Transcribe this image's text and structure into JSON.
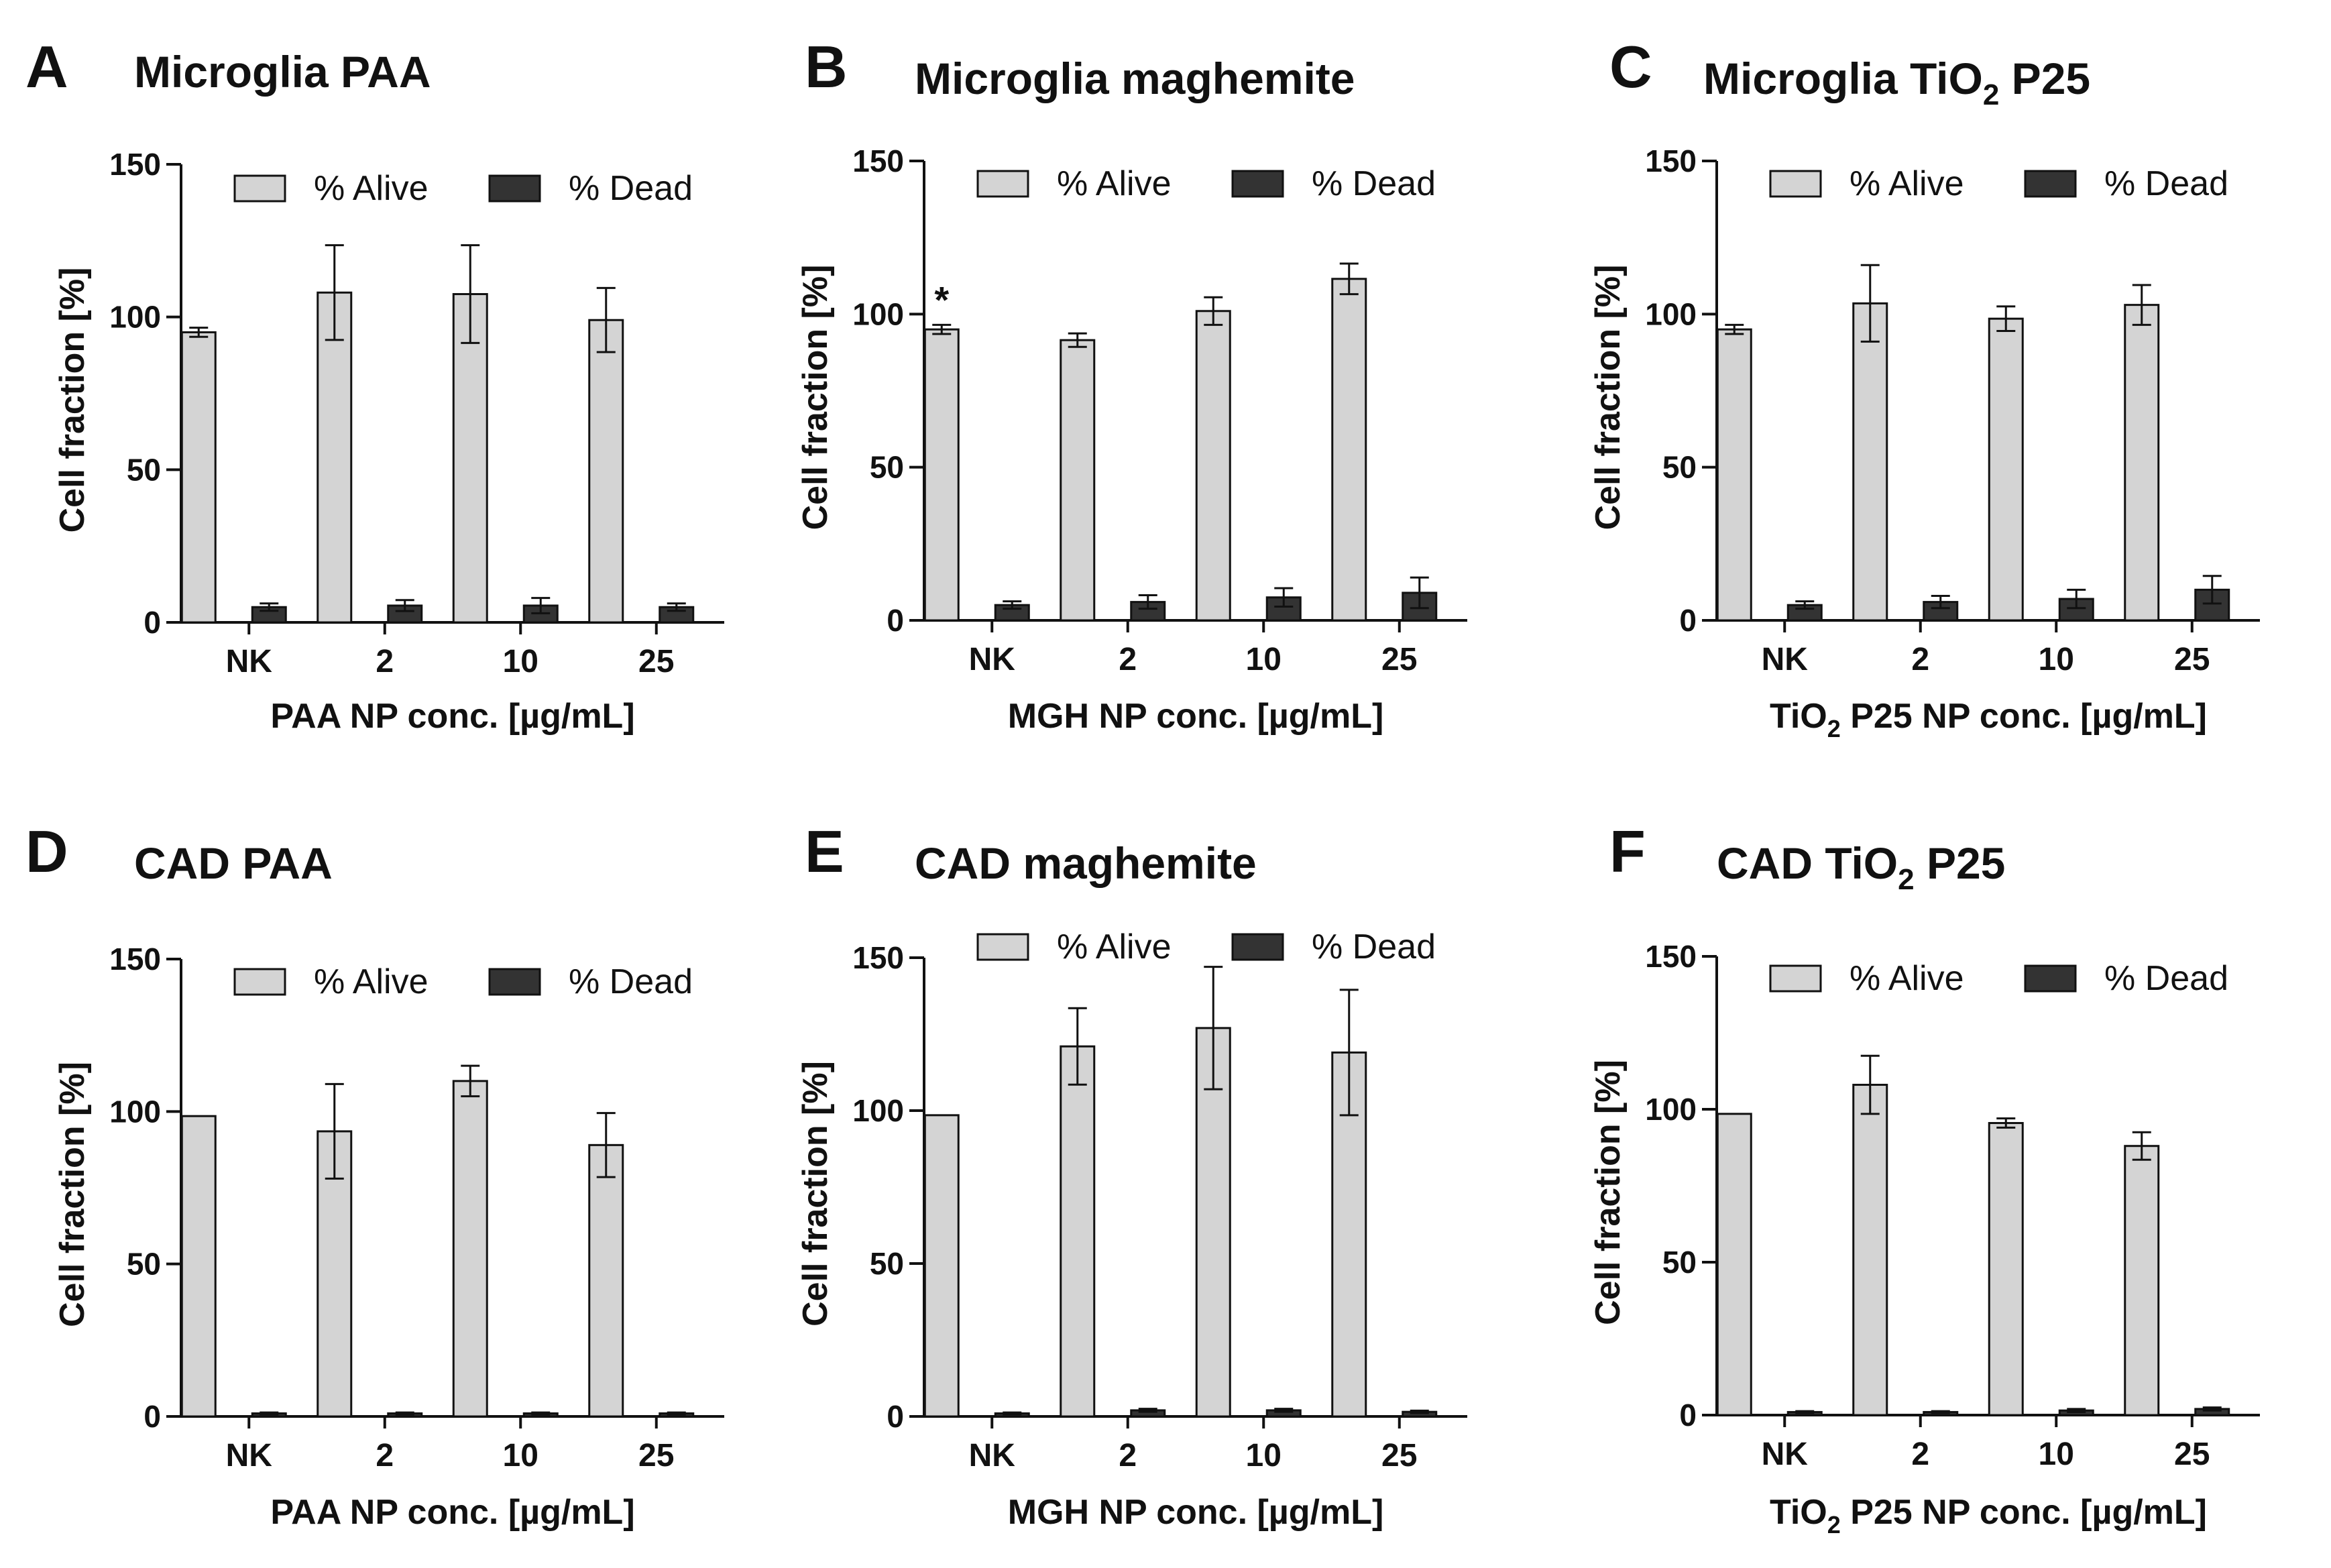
{
  "figure": {
    "colors": {
      "alive": "#d4d4d4",
      "dead": "#333333",
      "axis": "#111111"
    }
  },
  "chart_data": [
    {
      "type": "bar",
      "panel": "A",
      "title": {
        "main": "Microglia PAA",
        "sub": "",
        "tail": ""
      },
      "xlabel": {
        "main": "PAA NP conc. [",
        "mu": "µ",
        "tail": "g/mL]"
      },
      "ylabel": "Cell fraction [%]",
      "ylim": [
        0,
        150
      ],
      "yticks": [
        "0",
        "50",
        "100",
        "150"
      ],
      "categories": [
        "NK",
        "2",
        "10",
        "25"
      ],
      "series": [
        {
          "name": "% Alive",
          "values": [
            95,
            108,
            107.5,
            99
          ],
          "errors": [
            1.5,
            15.5,
            16,
            10.5
          ]
        },
        {
          "name": "% Dead",
          "values": [
            5,
            5.5,
            5.5,
            5
          ],
          "errors": [
            1.2,
            1.8,
            2.5,
            1.2
          ]
        }
      ],
      "annotations": []
    },
    {
      "type": "bar",
      "panel": "B",
      "title": {
        "main": "Microglia maghemite",
        "sub": "",
        "tail": ""
      },
      "xlabel": {
        "main": "MGH NP conc. [",
        "mu": "µ",
        "tail": "g/mL]"
      },
      "ylabel": "Cell fraction [%]",
      "ylim": [
        0,
        150
      ],
      "yticks": [
        "0",
        "50",
        "100",
        "150"
      ],
      "categories": [
        "NK",
        "2",
        "10",
        "25"
      ],
      "series": [
        {
          "name": "% Alive",
          "values": [
            95,
            91.5,
            101,
            111.5
          ],
          "errors": [
            1.5,
            2.2,
            4.5,
            5
          ]
        },
        {
          "name": "% Dead",
          "values": [
            5,
            6,
            7.5,
            9
          ],
          "errors": [
            1.2,
            2.2,
            3,
            5
          ]
        }
      ],
      "annotations": [
        "*",
        "",
        "",
        ""
      ]
    },
    {
      "type": "bar",
      "panel": "C",
      "title": {
        "main": "Microglia TiO",
        "sub": "2",
        "tail": " P25"
      },
      "xlabel": {
        "main": "TiO",
        "sub": "2",
        "main2": " P25 NP conc. [",
        "mu": "µ",
        "tail": "g/mL]"
      },
      "ylabel": "Cell fraction [%]",
      "ylim": [
        0,
        150
      ],
      "yticks": [
        "0",
        "50",
        "100",
        "150"
      ],
      "categories": [
        "NK",
        "2",
        "10",
        "25"
      ],
      "series": [
        {
          "name": "% Alive",
          "values": [
            95,
            103.5,
            98.5,
            103
          ],
          "errors": [
            1.5,
            12.5,
            4,
            6.5
          ]
        },
        {
          "name": "% Dead",
          "values": [
            5,
            6,
            7,
            10
          ],
          "errors": [
            1.2,
            2,
            3,
            4.5
          ]
        }
      ],
      "annotations": []
    },
    {
      "type": "bar",
      "panel": "D",
      "title": {
        "main": "CAD PAA",
        "sub": "",
        "tail": ""
      },
      "xlabel": {
        "main": "PAA NP conc. [",
        "mu": "µ",
        "tail": "g/mL]"
      },
      "ylabel": "Cell fraction [%]",
      "ylim": [
        0,
        150
      ],
      "yticks": [
        "0",
        "50",
        "100",
        "150"
      ],
      "categories": [
        "NK",
        "2",
        "10",
        "25"
      ],
      "series": [
        {
          "name": "% Alive",
          "values": [
            98.5,
            93.5,
            110,
            89
          ],
          "errors": [
            0,
            15.5,
            5,
            10.5
          ]
        },
        {
          "name": "% Dead",
          "values": [
            1,
            1,
            1,
            1
          ],
          "errors": [
            0.3,
            0.3,
            0.3,
            0.3
          ]
        }
      ],
      "annotations": []
    },
    {
      "type": "bar",
      "panel": "E",
      "title": {
        "main": "CAD maghemite",
        "sub": "",
        "tail": ""
      },
      "xlabel": {
        "main": "MGH NP conc. [",
        "mu": "µ",
        "tail": "g/mL]"
      },
      "ylabel": "Cell fraction [%]",
      "ylim": [
        0,
        150
      ],
      "yticks": [
        "0",
        "50",
        "100",
        "150"
      ],
      "categories": [
        "NK",
        "2",
        "10",
        "25"
      ],
      "series": [
        {
          "name": "% Alive",
          "values": [
            98.5,
            121,
            127,
            119
          ],
          "errors": [
            0,
            12.5,
            20,
            20.5
          ]
        },
        {
          "name": "% Dead",
          "values": [
            1,
            2,
            2,
            1.5
          ],
          "errors": [
            0.3,
            0.5,
            0.5,
            0.4
          ]
        }
      ],
      "annotations": []
    },
    {
      "type": "bar",
      "panel": "F",
      "title": {
        "main": "CAD TiO",
        "sub": "2",
        "tail": " P25"
      },
      "xlabel": {
        "main": "TiO",
        "sub": "2",
        "main2": " P25 NP conc. [",
        "mu": "µ",
        "tail": "g/mL]"
      },
      "ylabel": "Cell fraction [%]",
      "ylim": [
        0,
        150
      ],
      "yticks": [
        "0",
        "50",
        "100",
        "150"
      ],
      "categories": [
        "NK",
        "2",
        "10",
        "25"
      ],
      "series": [
        {
          "name": "% Alive",
          "values": [
            98.5,
            108,
            95.5,
            88
          ],
          "errors": [
            0,
            9.5,
            1.5,
            4.5
          ]
        },
        {
          "name": "% Dead",
          "values": [
            1,
            1,
            1.5,
            2
          ],
          "errors": [
            0.3,
            0.3,
            0.5,
            0.5
          ]
        }
      ],
      "annotations": []
    }
  ]
}
